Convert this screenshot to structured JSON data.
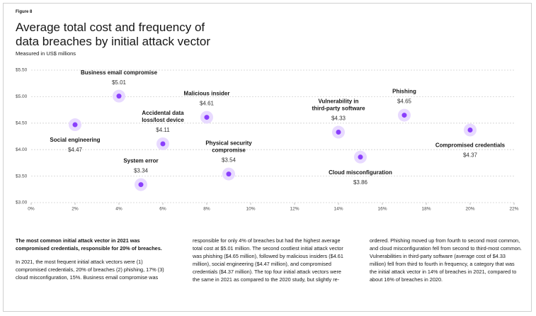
{
  "figure_label": "Figure 8",
  "chart_data": {
    "type": "scatter",
    "title": "Average total cost and frequency of data breaches by initial attack vector",
    "subtitle": "Measured in US$ millions",
    "labels": [
      [
        "Social engineering"
      ],
      [
        "Business email compromise"
      ],
      [
        "System error"
      ],
      [
        "Accidental data",
        "loss/lost device"
      ],
      [
        "Malicious insider"
      ],
      [
        "Physical  security",
        "compromise"
      ],
      [
        "Vulnerability in",
        "third-party software"
      ],
      [
        "Cloud misconfiguration"
      ],
      [
        "Phishing"
      ],
      [
        "Compromised credentials"
      ]
    ],
    "x": [
      2,
      4,
      5,
      6,
      8,
      9,
      14,
      15,
      17,
      20
    ],
    "values": [
      4.47,
      5.01,
      3.34,
      4.11,
      4.61,
      3.54,
      4.33,
      3.86,
      4.65,
      4.37
    ],
    "value_labels": [
      "$4.47",
      "$5.01",
      "$3.34",
      "$4.11",
      "$4.61",
      "$3.54",
      "$4.33",
      "$3.86",
      "$4.65",
      "$4.37"
    ],
    "color": "#8a3ffc",
    "xlim": [
      0,
      22
    ],
    "xticks": [
      {
        "value": 0,
        "label": "0%"
      },
      {
        "value": 2,
        "label": "2%"
      },
      {
        "value": 4,
        "label": "4%"
      },
      {
        "value": 6,
        "label": "6%"
      },
      {
        "value": 8,
        "label": "8%"
      },
      {
        "value": 10,
        "label": "10%"
      },
      {
        "value": 12,
        "label": "12%"
      },
      {
        "value": 14,
        "label": "14%"
      },
      {
        "value": 16,
        "label": "16%"
      },
      {
        "value": 18,
        "label": "18%"
      },
      {
        "value": 20,
        "label": "20%"
      },
      {
        "value": 22,
        "label": "22%"
      }
    ],
    "ylim": [
      3.0,
      5.5
    ],
    "yticks": [
      {
        "value": 3.0,
        "label": "$3.00"
      },
      {
        "value": 3.5,
        "label": "$3.50"
      },
      {
        "value": 4.0,
        "label": "$4.00"
      },
      {
        "value": 4.5,
        "label": "$4.50"
      },
      {
        "value": 5.0,
        "label": "$5.00"
      },
      {
        "value": 5.5,
        "label": "$5.50"
      }
    ],
    "grid": true
  },
  "body": {
    "lead": "The most common initial attack vector in 2021 was compromised credentials, responsible for 20% of breaches.",
    "text": "In 2021, the most frequent initial attack vectors were (1) compromised credentials, 20% of breaches (2) phishing, 17% (3) cloud misconfiguration, 15%. Business email compromise was responsible for only 4% of breaches but had the highest average total cost at $5.01 million. The second costliest initial attack vector was phishing ($4.65 million), followed by malicious insiders ($4.61 million), social engineering ($4.47 million), and compromised credentials ($4.37 million). The top four initial attack vectors were the same in 2021 as compared to the 2020 study, but slightly re-ordered. Phishing moved up from fourth to second most common, and cloud misconfiguration fell from second to third-most common. Vulnerabilities in third-party software (average cost of $4.33 million) fell from third to fourth in frequency, a category that was the initial attack vector in 14% of breaches in 2021, compared to about 16% of breaches in 2020."
  }
}
